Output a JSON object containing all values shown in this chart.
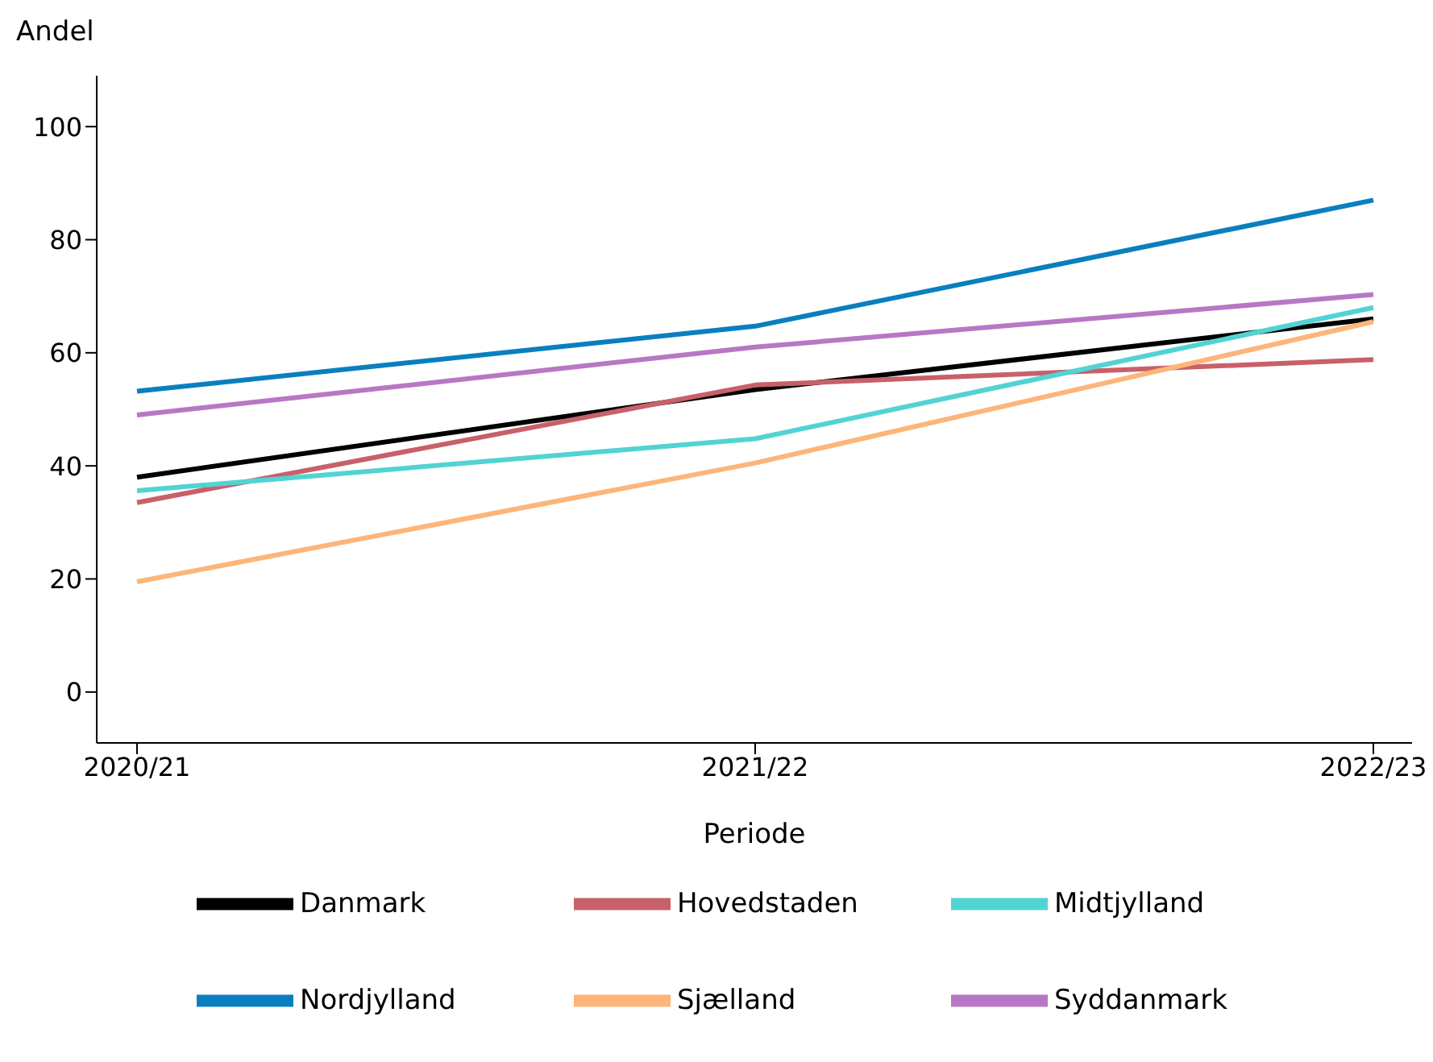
{
  "chart_data": {
    "type": "line",
    "xlabel": "Periode",
    "ylabel": "Andel",
    "categories": [
      "2020/21",
      "2021/22",
      "2022/23"
    ],
    "series": [
      {
        "name": "Danmark",
        "color": "#000000",
        "values": [
          38,
          53.5,
          66
        ]
      },
      {
        "name": "Hovedstaden",
        "color": "#c8606a",
        "values": [
          33.5,
          54.3,
          58.8
        ]
      },
      {
        "name": "Sjælland",
        "color": "#fdb57a",
        "values": [
          19.5,
          40.5,
          65.5
        ]
      },
      {
        "name": "Syddanmark",
        "color": "#b877c5",
        "values": [
          49,
          61,
          70.3
        ]
      },
      {
        "name": "Midtjylland",
        "color": "#52d3d3",
        "values": [
          35.6,
          44.8,
          68
        ]
      },
      {
        "name": "Nordjylland",
        "color": "#0a7fbf",
        "values": [
          53.2,
          64.7,
          87
        ]
      }
    ],
    "ylim": [
      -9,
      109
    ],
    "yticks": [
      0,
      20,
      40,
      60,
      80,
      100
    ],
    "grid": false,
    "legend": "bottom",
    "marker": "none",
    "line_style": "solid"
  }
}
